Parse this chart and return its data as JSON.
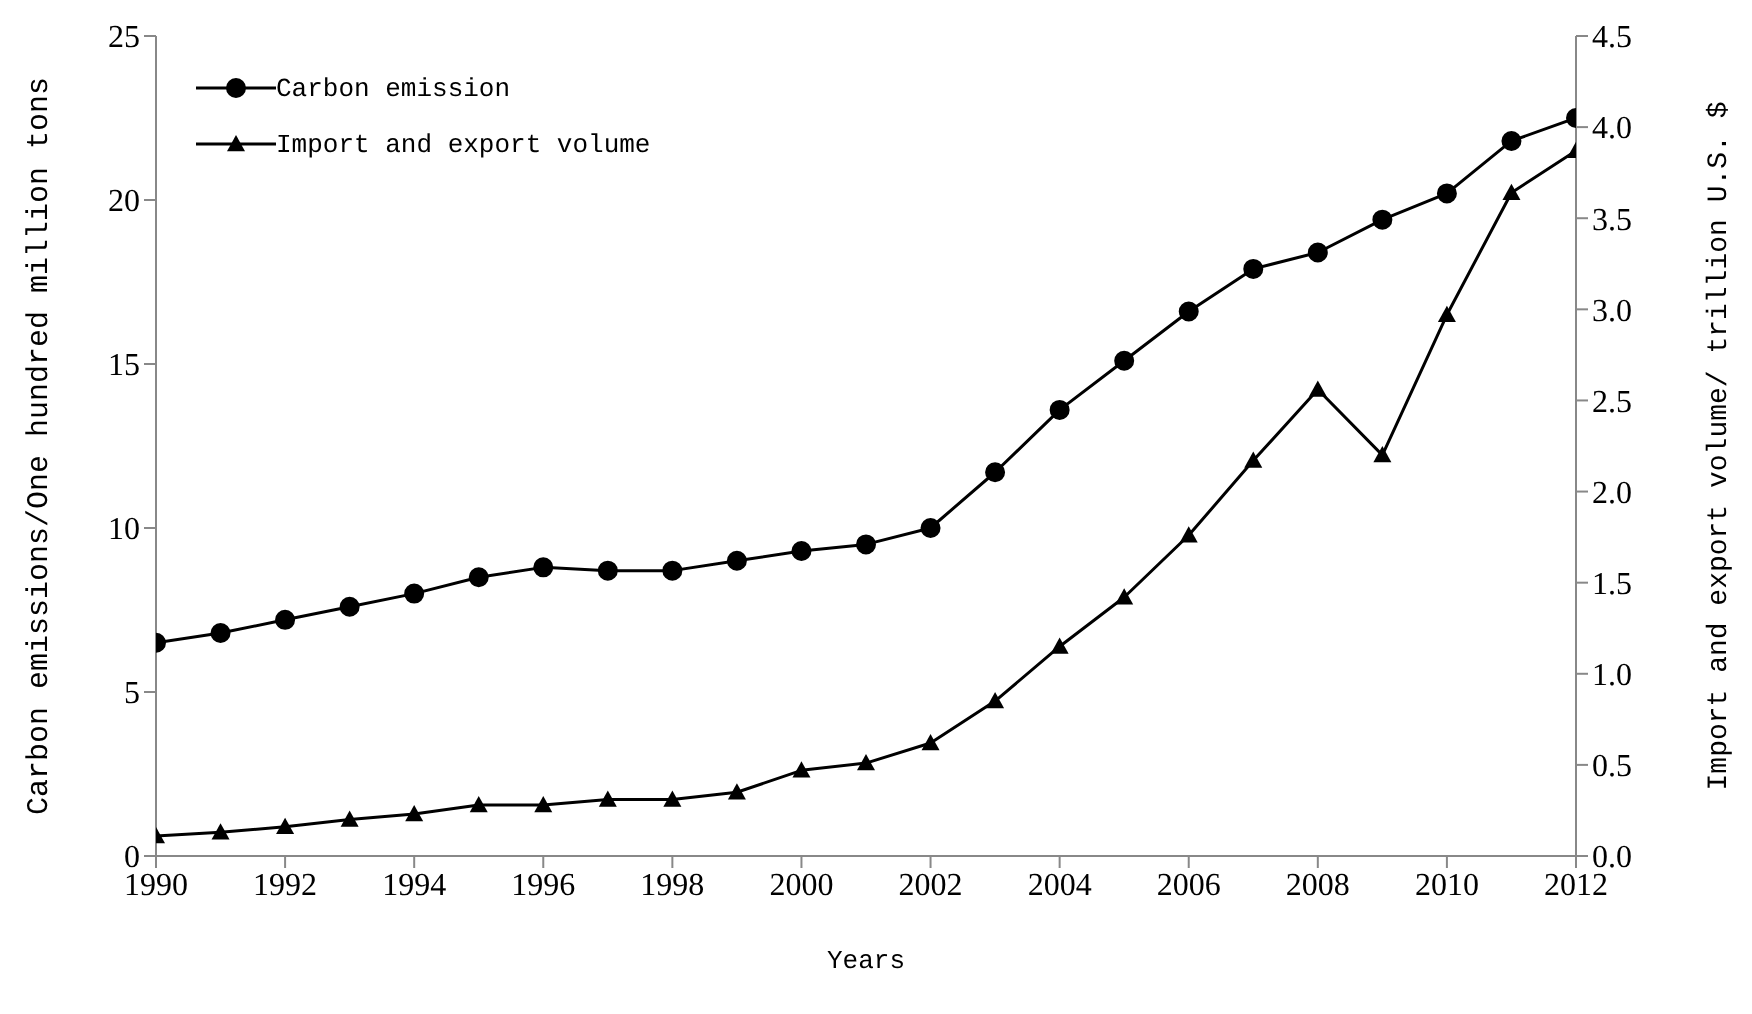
{
  "chart_data": {
    "type": "line",
    "xlabel": "Years",
    "ylabel": "Carbon emissions/One hundred million tons",
    "y2label": "Import and export volume/ trillion U.S. $",
    "x": [
      1990,
      1991,
      1992,
      1993,
      1994,
      1995,
      1996,
      1997,
      1998,
      1999,
      2000,
      2001,
      2002,
      2003,
      2004,
      2005,
      2006,
      2007,
      2008,
      2009,
      2010,
      2011,
      2012
    ],
    "series": [
      {
        "name": "Carbon emission",
        "color": "#000000",
        "marker": "circle",
        "values": [
          6.5,
          6.8,
          7.2,
          7.6,
          8.0,
          8.5,
          8.8,
          8.7,
          8.7,
          9.0,
          9.3,
          9.5,
          10.0,
          11.7,
          13.6,
          15.1,
          16.6,
          17.9,
          18.4,
          19.4,
          20.2,
          21.8,
          22.5
        ]
      },
      {
        "name": "Import and export volume",
        "color": "#000000",
        "marker": "triangle",
        "axis": "y2",
        "values": [
          0.11,
          0.13,
          0.16,
          0.2,
          0.23,
          0.28,
          0.28,
          0.31,
          0.31,
          0.35,
          0.47,
          0.51,
          0.62,
          0.85,
          1.15,
          1.42,
          1.76,
          2.17,
          2.56,
          2.2,
          2.97,
          3.64,
          3.87
        ]
      }
    ],
    "xlim": [
      1990,
      2012
    ],
    "xticks": [
      1990,
      1992,
      1994,
      1996,
      1998,
      2000,
      2002,
      2004,
      2006,
      2008,
      2010,
      2012
    ],
    "ylim": [
      0,
      25
    ],
    "yticks": [
      0,
      5,
      10,
      15,
      20,
      25
    ],
    "y2lim": [
      0,
      4.5
    ],
    "y2ticks": [
      {
        "value": 0,
        "label": "0.0"
      },
      {
        "value": 0.5,
        "label": "0.5"
      },
      {
        "value": 1,
        "label": "1.0"
      },
      {
        "value": 1.5,
        "label": "1.5"
      },
      {
        "value": 2,
        "label": "2.0"
      },
      {
        "value": 2.5,
        "label": "2.5"
      },
      {
        "value": 3,
        "label": "3.0"
      },
      {
        "value": 3.5,
        "label": "3.5"
      },
      {
        "value": 4,
        "label": "4.0"
      },
      {
        "value": 4.5,
        "label": "4.5"
      }
    ],
    "grid": false,
    "legend": "top left"
  }
}
